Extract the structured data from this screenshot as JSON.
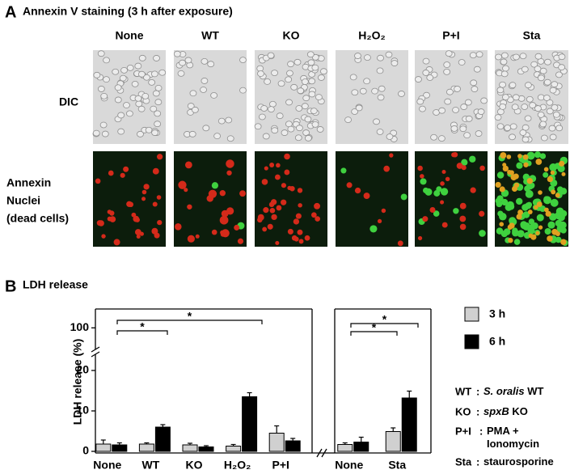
{
  "panel_a": {
    "label": "A",
    "title": "Annexin V staining (3 h after exposure)",
    "columns": [
      "None",
      "WT",
      "KO",
      "H₂O₂",
      "P+I",
      "Sta"
    ],
    "rows": [
      "DIC"
    ],
    "stain_labels": [
      "Annexin",
      "Nuclei",
      "(dead cells)"
    ],
    "stain_colors": [
      "#1aa64a",
      "#e0218a",
      "#e0218a"
    ]
  },
  "panel_b": {
    "label": "B",
    "title": "LDH release"
  },
  "chart_data": [
    {
      "type": "bar",
      "ylabel": "LDH release (%)",
      "categories": [
        "None",
        "WT",
        "KO",
        "H₂O₂",
        "P+I"
      ],
      "series": [
        {
          "name": "3 h",
          "color": "#d0d0d0",
          "values": [
            1.8,
            1.8,
            1.6,
            1.3,
            4.5
          ],
          "errors": [
            1.0,
            0.3,
            0.4,
            0.4,
            1.8
          ]
        },
        {
          "name": "6 h",
          "color": "#000000",
          "values": [
            1.6,
            6.0,
            1.1,
            13.5,
            2.6
          ],
          "errors": [
            0.5,
            0.6,
            0.3,
            1.0,
            0.6
          ]
        }
      ],
      "ylim": [
        0,
        103.5
      ],
      "ybreak": [
        24,
        96
      ],
      "yticks": [
        0,
        10,
        20,
        100
      ],
      "annotations": [
        {
          "text": "*"
        },
        {
          "text": "*"
        }
      ]
    },
    {
      "type": "bar",
      "categories": [
        "None",
        "Sta"
      ],
      "series": [
        {
          "color": "#d0d0d0",
          "values": [
            1.7,
            4.9
          ],
          "errors": [
            0.4,
            0.9
          ]
        },
        {
          "color": "#000000",
          "values": [
            2.3,
            13.2
          ],
          "errors": [
            1.2,
            1.7
          ]
        }
      ],
      "ylim": [
        0,
        103.5
      ],
      "ybreak": [
        24,
        96
      ],
      "annotations": [
        {
          "text": "*"
        },
        {
          "text": "*"
        }
      ]
    }
  ],
  "notes": {
    "separator": ":",
    "items": [
      {
        "key": "WT",
        "lines": [
          [
            {
              "text": "S. oralis",
              "italic": true
            },
            {
              "text": " WT"
            }
          ]
        ]
      },
      {
        "key": "KO",
        "lines": [
          [
            {
              "text": "spxB",
              "italic": true
            },
            {
              "text": " KO"
            }
          ]
        ]
      },
      {
        "key": "P+I",
        "lines": [
          [
            {
              "text": "PMA +"
            }
          ],
          [
            {
              "text": "Ionomycin"
            }
          ]
        ]
      },
      {
        "key": "Sta",
        "lines": [
          [
            {
              "text": "staurosporine"
            }
          ]
        ]
      }
    ]
  }
}
